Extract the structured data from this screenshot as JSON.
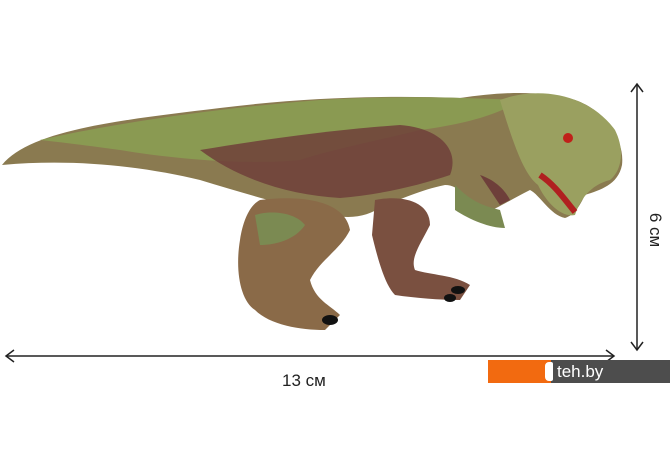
{
  "product": {
    "subject": "dinosaur-figure"
  },
  "dimensions": {
    "length_label": "13 см",
    "height_label": "6 см"
  },
  "watermark": {
    "text": "teh.by",
    "colors": {
      "orange": "#f26a10",
      "gray": "#4d4d4d"
    }
  },
  "colors": {
    "body_green": "#8a9a52",
    "body_brown": "#6e3f3a",
    "belly_tan": "#c9a57a"
  }
}
